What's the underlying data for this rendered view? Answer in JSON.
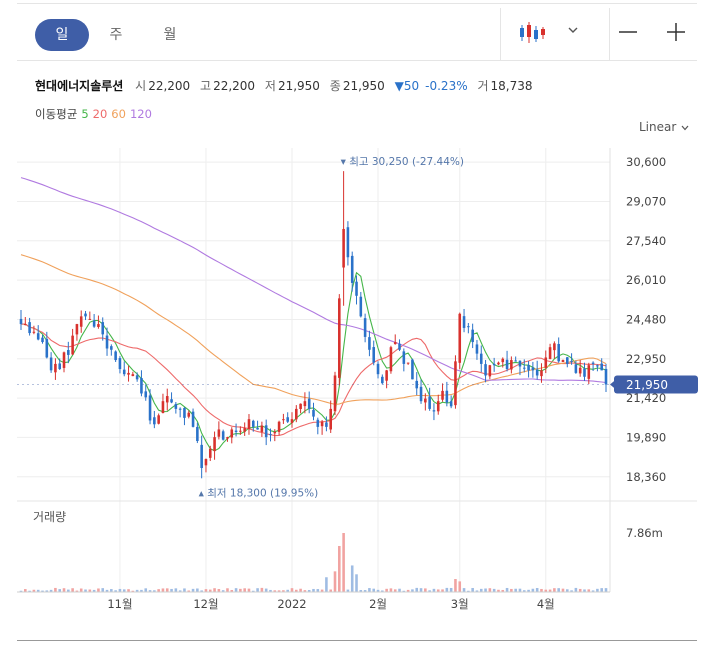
{
  "toolbar": {
    "periods": [
      "일",
      "주",
      "월"
    ],
    "active_period": 0,
    "chart_type_icon": "candlestick-icon",
    "zoom_out_icon": "minus-icon",
    "zoom_in_icon": "plus-icon"
  },
  "quote": {
    "name": "현대에너지솔루션",
    "open_label": "시",
    "open": "22,200",
    "high_label": "고",
    "high": "22,200",
    "low_label": "저",
    "low": "21,950",
    "close_label": "종",
    "close": "21,950",
    "change": "▼50",
    "change_pct": "-0.23%",
    "volume_label": "거",
    "volume": "18,738"
  },
  "ma_legend": {
    "label": "이동평균",
    "periods": [
      "5",
      "20",
      "60",
      "120"
    ],
    "colors": [
      "#45b649",
      "#ee6a6a",
      "#f0a15b",
      "#b07ae0"
    ]
  },
  "scale": {
    "label": "Linear"
  },
  "colors": {
    "up": "#d8312d",
    "down": "#2a72c9",
    "accent": "#3f5ea7",
    "grid": "#eeeeee"
  },
  "chart_data": {
    "type": "candlestick",
    "price_ticks": [
      "30,600",
      "29,070",
      "27,540",
      "26,010",
      "24,480",
      "22,950",
      "21,420",
      "19,890",
      "18,360"
    ],
    "price_tick_values": [
      30600,
      29070,
      27540,
      26010,
      24480,
      22950,
      21420,
      19890,
      18360
    ],
    "ylim": [
      17650,
      31150
    ],
    "x_labels": [
      "11월",
      "12월",
      "2022",
      "2월",
      "3월",
      "4월"
    ],
    "x_label_positions": [
      23,
      43,
      63,
      83,
      102,
      122
    ],
    "n_days": 137,
    "current_price": 21950,
    "current_price_label": "21,950",
    "max_annotation": "최고 30,250 (-27.44%)",
    "max_index": 75,
    "max_value": 30250,
    "min_annotation": "최저 18,300 (19.95%)",
    "min_index": 42,
    "min_value": 18300,
    "volume_label": "거래량",
    "volume_tick": "7.86m",
    "volume_max": 7860000,
    "close_anchors": [
      [
        0,
        24300
      ],
      [
        3,
        24000
      ],
      [
        7,
        22500
      ],
      [
        11,
        23100
      ],
      [
        13,
        24300
      ],
      [
        16,
        24500
      ],
      [
        19,
        23900
      ],
      [
        22,
        22900
      ],
      [
        25,
        22400
      ],
      [
        28,
        21600
      ],
      [
        31,
        20400
      ],
      [
        34,
        21500
      ],
      [
        37,
        21000
      ],
      [
        40,
        20300
      ],
      [
        42,
        18700
      ],
      [
        45,
        19900
      ],
      [
        49,
        20200
      ],
      [
        54,
        20300
      ],
      [
        58,
        20000
      ],
      [
        62,
        20500
      ],
      [
        65,
        21200
      ],
      [
        68,
        20700
      ],
      [
        71,
        20300
      ],
      [
        73,
        22300
      ],
      [
        75,
        28000
      ],
      [
        77,
        25900
      ],
      [
        79,
        24600
      ],
      [
        81,
        23300
      ],
      [
        84,
        22000
      ],
      [
        87,
        23600
      ],
      [
        90,
        22800
      ],
      [
        92,
        21800
      ],
      [
        95,
        21000
      ],
      [
        98,
        21700
      ],
      [
        100,
        21100
      ],
      [
        102,
        24700
      ],
      [
        105,
        23600
      ],
      [
        108,
        22300
      ],
      [
        111,
        22800
      ],
      [
        114,
        22900
      ],
      [
        117,
        22600
      ],
      [
        120,
        22300
      ],
      [
        123,
        23400
      ],
      [
        126,
        22900
      ],
      [
        129,
        22400
      ],
      [
        132,
        22700
      ],
      [
        135,
        22500
      ],
      [
        136,
        21950
      ]
    ],
    "volume_spikes": {
      "74": 0.78,
      "75": 1.0,
      "73": 0.35,
      "77": 0.45,
      "78": 0.3,
      "71": 0.25,
      "101": 0.22,
      "102": 0.18
    }
  }
}
